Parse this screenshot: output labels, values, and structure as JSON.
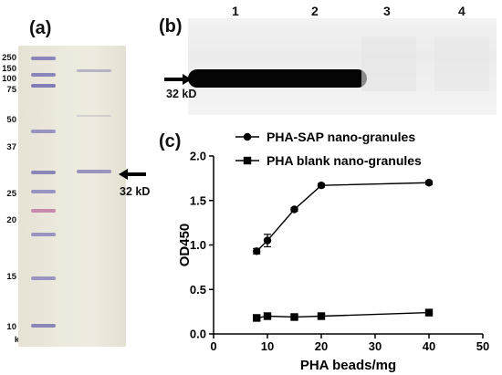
{
  "panels": {
    "a": {
      "label": "(a)",
      "ladder_labels": [
        "250",
        "150",
        "100",
        "75",
        "50",
        "37",
        "25",
        "20",
        "15",
        "10",
        "kD"
      ],
      "arrow_label": "32 kD"
    },
    "b": {
      "label": "(b)",
      "lanes": [
        "1",
        "2",
        "3",
        "4"
      ],
      "arrow_label": "32 kD"
    },
    "c": {
      "label": "(c)"
    }
  },
  "chart_data": {
    "type": "line",
    "title": "",
    "xlabel": "PHA beads/mg",
    "ylabel": "OD450",
    "xlim": [
      0,
      50
    ],
    "ylim": [
      0.0,
      2.0
    ],
    "xticks": [
      "0",
      "10",
      "20",
      "30",
      "40",
      "50"
    ],
    "yticks": [
      "0.0",
      "0.5",
      "1.0",
      "1.5",
      "2.0"
    ],
    "legend_position": "top",
    "grid": false,
    "series": [
      {
        "name": "PHA-SAP nano-granules",
        "marker": "circle",
        "x": [
          8,
          10,
          15,
          20,
          40
        ],
        "y": [
          0.93,
          1.05,
          1.4,
          1.67,
          1.7
        ],
        "yerr": [
          0.03,
          0.07,
          0.02,
          0.02,
          0.02
        ]
      },
      {
        "name": "PHA blank nano-granules",
        "marker": "square",
        "x": [
          8,
          10,
          15,
          20,
          40
        ],
        "y": [
          0.18,
          0.2,
          0.19,
          0.2,
          0.24
        ],
        "yerr": [
          0,
          0,
          0,
          0,
          0
        ]
      }
    ]
  }
}
